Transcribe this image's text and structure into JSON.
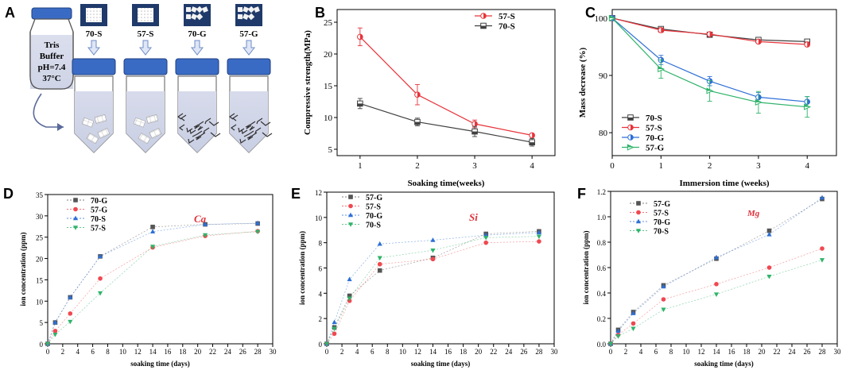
{
  "schematic": {
    "panel_label": "A",
    "buffer_lines": [
      "Tris",
      "Buffer",
      "pH=7.4",
      "37°C"
    ],
    "samples": [
      "70-S",
      "57-S",
      "70-G",
      "57-G"
    ]
  },
  "colors": {
    "red": "#e8333a",
    "gray": "#404040",
    "blue": "#2d6fd6",
    "green": "#2fb36a",
    "pink": "#f0484f"
  },
  "chart_data": [
    {
      "id": "B",
      "type": "line",
      "panel_label": "B",
      "xlabel": "Soaking time(weeks)",
      "ylabel": "Compressive strength(MPa)",
      "x": [
        1,
        2,
        3,
        4
      ],
      "xlim": [
        0.6,
        4.4
      ],
      "ylim": [
        4,
        27
      ],
      "xticks": [
        1,
        2,
        3,
        4
      ],
      "yticks": [
        5,
        10,
        15,
        20,
        25
      ],
      "series": [
        {
          "name": "57-S",
          "color": "#e8333a",
          "marker": "halfcircle",
          "values": [
            22.7,
            13.6,
            9.0,
            7.2
          ],
          "err": [
            1.4,
            1.6,
            0.6,
            0.3
          ]
        },
        {
          "name": "70-S",
          "color": "#404040",
          "marker": "halfsquare",
          "values": [
            12.2,
            9.3,
            7.8,
            6.1
          ],
          "err": [
            0.8,
            0.6,
            0.8,
            0.6
          ]
        }
      ],
      "legend": "top-right"
    },
    {
      "id": "C",
      "type": "line",
      "panel_label": "C",
      "xlabel": "Immersion time (weeks)",
      "ylabel": "Mass decrease (%)",
      "x": [
        0,
        1,
        2,
        3,
        4
      ],
      "xlim": [
        0,
        4.6
      ],
      "ylim": [
        76,
        101.5
      ],
      "xticks": [
        0,
        1,
        2,
        3,
        4
      ],
      "yticks": [
        80,
        90,
        100
      ],
      "series": [
        {
          "name": "70-S",
          "color": "#404040",
          "marker": "halfsquare",
          "values": [
            100,
            98.1,
            97.1,
            96.2,
            95.9
          ],
          "err": [
            0,
            0.3,
            0.3,
            0.3,
            0.3
          ]
        },
        {
          "name": "57-S",
          "color": "#e8333a",
          "marker": "halfcircle",
          "values": [
            100,
            97.9,
            97.2,
            95.9,
            95.4
          ],
          "err": [
            0,
            0.4,
            0.3,
            0.3,
            0.3
          ]
        },
        {
          "name": "70-G",
          "color": "#2d6fd6",
          "marker": "halfcircle",
          "values": [
            100,
            92.7,
            89.0,
            86.2,
            85.4
          ],
          "err": [
            0,
            0.8,
            0.8,
            0.8,
            0.9
          ]
        },
        {
          "name": "57-G",
          "color": "#2fb36a",
          "marker": "halftriangle",
          "values": [
            100,
            91.1,
            87.3,
            85.3,
            84.5
          ],
          "err": [
            0,
            1.6,
            1.8,
            1.9,
            1.8
          ]
        }
      ],
      "legend": "bottom-left"
    },
    {
      "id": "D",
      "type": "scatter",
      "panel_label": "D",
      "xlabel": "soaking time (days)",
      "ylabel": "ion concentration (ppm)",
      "element_label": "Ca",
      "x": [
        0,
        1,
        3,
        7,
        14,
        21,
        28
      ],
      "xlim": [
        0,
        30
      ],
      "ylim": [
        0,
        35
      ],
      "xticks": [
        0,
        2,
        4,
        6,
        8,
        10,
        12,
        14,
        16,
        18,
        20,
        22,
        24,
        26,
        28,
        30
      ],
      "yticks": [
        0,
        5,
        10,
        15,
        20,
        25,
        30,
        35
      ],
      "series": [
        {
          "name": "70-G",
          "color": "#555555",
          "marker": "square",
          "values": [
            0,
            5.0,
            10.9,
            20.5,
            27.4,
            28.0,
            28.2
          ]
        },
        {
          "name": "57-G",
          "color": "#f0484f",
          "marker": "circle",
          "values": [
            0,
            3.0,
            7.1,
            15.3,
            22.6,
            25.3,
            26.4
          ]
        },
        {
          "name": "70-S",
          "color": "#2d6fd6",
          "marker": "triangle",
          "values": [
            0,
            5.0,
            10.9,
            20.5,
            26.3,
            28.0,
            28.3
          ]
        },
        {
          "name": "57-S",
          "color": "#2fb36a",
          "marker": "triangle-down",
          "values": [
            0,
            2.2,
            5.2,
            11.9,
            22.8,
            25.5,
            26.3
          ]
        }
      ]
    },
    {
      "id": "E",
      "type": "scatter",
      "panel_label": "E",
      "xlabel": "soaking time (days)",
      "ylabel": "ion concentration (ppm)",
      "element_label": "Si",
      "x": [
        0,
        1,
        3,
        7,
        14,
        21,
        28
      ],
      "xlim": [
        0,
        30
      ],
      "ylim": [
        0,
        12
      ],
      "xticks": [
        0,
        2,
        4,
        6,
        8,
        10,
        12,
        14,
        16,
        18,
        20,
        22,
        24,
        26,
        28,
        30
      ],
      "yticks": [
        0,
        2,
        4,
        6,
        8,
        10,
        12
      ],
      "series": [
        {
          "name": "57-G",
          "color": "#555555",
          "marker": "square",
          "values": [
            0,
            1.3,
            3.8,
            5.8,
            6.8,
            8.7,
            8.9
          ]
        },
        {
          "name": "57-S",
          "color": "#f0484f",
          "marker": "circle",
          "values": [
            0,
            0.8,
            3.4,
            6.3,
            6.7,
            8.0,
            8.1
          ]
        },
        {
          "name": "70-G",
          "color": "#2d6fd6",
          "marker": "triangle",
          "values": [
            0,
            1.7,
            5.1,
            7.9,
            8.2,
            8.6,
            8.8
          ]
        },
        {
          "name": "70-S",
          "color": "#2fb36a",
          "marker": "triangle-down",
          "values": [
            0,
            1.2,
            3.6,
            6.8,
            7.4,
            8.4,
            8.5
          ]
        }
      ]
    },
    {
      "id": "F",
      "type": "scatter",
      "panel_label": "F",
      "xlabel": "soaking time (days)",
      "ylabel": "ion concentration (ppm)",
      "element_label": "Mg",
      "x": [
        0,
        1,
        3,
        7,
        14,
        21,
        28
      ],
      "xlim": [
        0,
        30
      ],
      "ylim": [
        0,
        1.2
      ],
      "xticks": [
        0,
        2,
        4,
        6,
        8,
        10,
        12,
        14,
        16,
        18,
        20,
        22,
        24,
        26,
        28,
        30
      ],
      "yticks": [
        0.0,
        0.2,
        0.4,
        0.6,
        0.8,
        1.0,
        1.2
      ],
      "series": [
        {
          "name": "57-G",
          "color": "#555555",
          "marker": "square",
          "values": [
            0,
            0.11,
            0.25,
            0.46,
            0.67,
            0.89,
            1.14
          ]
        },
        {
          "name": "57-S",
          "color": "#f0484f",
          "marker": "circle",
          "values": [
            0,
            0.07,
            0.16,
            0.35,
            0.47,
            0.6,
            0.75
          ]
        },
        {
          "name": "70-G",
          "color": "#2d6fd6",
          "marker": "triangle",
          "values": [
            0,
            0.1,
            0.24,
            0.45,
            0.68,
            0.86,
            1.15
          ]
        },
        {
          "name": "70-S",
          "color": "#2fb36a",
          "marker": "triangle-down",
          "values": [
            0,
            0.06,
            0.12,
            0.27,
            0.39,
            0.53,
            0.66
          ]
        }
      ]
    }
  ]
}
